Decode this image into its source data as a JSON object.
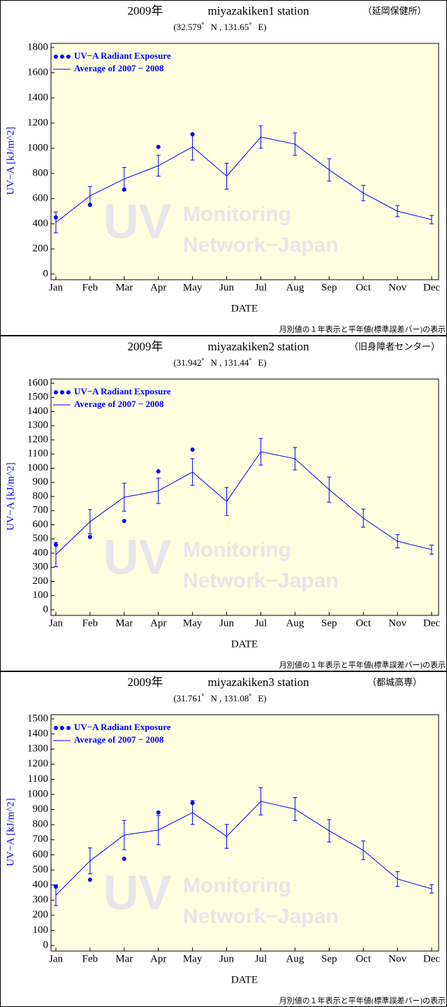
{
  "chart_data": [
    {
      "type": "line",
      "title": "2009年",
      "station": "miyazakiken1 station",
      "note": "（延岡保健所）",
      "subtitle": "(32.579゜N , 131.65゜E)",
      "footer": "月別値の１年表示と平年値(標準誤差バー)の表示",
      "watermark": [
        "UV",
        "Monitoring",
        "Network−Japan"
      ],
      "xlabel": "DATE",
      "ylabel": "UV−A [kJ/m^2]",
      "background": "#ffffe0",
      "categories": [
        "Jan",
        "Feb",
        "Mar",
        "Apr",
        "May",
        "Jun",
        "Jul",
        "Aug",
        "Sep",
        "Oct",
        "Nov",
        "Dec"
      ],
      "ylim": [
        0,
        1800
      ],
      "yticks": [
        0,
        200,
        400,
        600,
        800,
        1000,
        1200,
        1400,
        1600,
        1800
      ],
      "series": [
        {
          "name": "UV−A Radiant Exposure",
          "type": "scatter",
          "color": "#0000ff",
          "values": [
            450,
            550,
            672,
            1011,
            1111,
            null,
            null,
            null,
            null,
            null,
            null,
            null
          ]
        },
        {
          "name": "Average of 2007 − 2008",
          "type": "line",
          "color": "#0000ff",
          "values": [
            411,
            622,
            756,
            861,
            1011,
            778,
            1089,
            1033,
            828,
            644,
            500,
            433
          ],
          "errors": [
            83,
            75,
            92,
            83,
            105,
            103,
            89,
            89,
            89,
            61,
            44,
            33
          ]
        }
      ]
    },
    {
      "type": "line",
      "title": "2009年",
      "station": "miyazakiken2 station",
      "note": "（旧身障者センター）",
      "subtitle": "(31.942゜N , 131.44゜E)",
      "footer": "月別値の１年表示と平年値(標準誤差バー)の表示",
      "watermark": [
        "UV",
        "Monitoring",
        "Network−Japan"
      ],
      "xlabel": "DATE",
      "ylabel": "UV−A [kJ/m^2]",
      "background": "#ffffe0",
      "categories": [
        "Jan",
        "Feb",
        "Mar",
        "Apr",
        "May",
        "Jun",
        "Jul",
        "Aug",
        "Sep",
        "Oct",
        "Nov",
        "Dec"
      ],
      "ylim": [
        0,
        1600
      ],
      "yticks": [
        0,
        100,
        200,
        300,
        400,
        500,
        600,
        700,
        800,
        900,
        1000,
        1100,
        1200,
        1300,
        1400,
        1500,
        1600
      ],
      "series": [
        {
          "name": "UV−A Radiant Exposure",
          "type": "scatter",
          "color": "#0000ff",
          "values": [
            459,
            514,
            627,
            978,
            1131,
            null,
            null,
            null,
            null,
            null,
            null,
            null
          ]
        },
        {
          "name": "Average of 2007 − 2008",
          "type": "line",
          "color": "#0000ff",
          "values": [
            390,
            622,
            795,
            840,
            973,
            765,
            1116,
            1067,
            849,
            647,
            484,
            425
          ],
          "errors": [
            86,
            86,
            99,
            89,
            94,
            99,
            94,
            79,
            89,
            64,
            47,
            32
          ]
        }
      ]
    },
    {
      "type": "line",
      "title": "2009年",
      "station": "miyazakiken3 station",
      "note": "（都城高専）",
      "subtitle": "(31.761゜N , 131.08゜E)",
      "footer": "月別値の１年表示と平年値(標準誤差バー)の表示",
      "watermark": [
        "UV",
        "Monitoring",
        "Network−Japan"
      ],
      "xlabel": "DATE",
      "ylabel": "UV−A [kJ/m^2]",
      "background": "#ffffe0",
      "categories": [
        "Jan",
        "Feb",
        "Mar",
        "Apr",
        "May",
        "Jun",
        "Jul",
        "Aug",
        "Sep",
        "Oct",
        "Nov",
        "Dec"
      ],
      "ylim": [
        0,
        1500
      ],
      "yticks": [
        0,
        100,
        200,
        300,
        400,
        500,
        600,
        700,
        800,
        900,
        1000,
        1100,
        1200,
        1300,
        1400,
        1500
      ],
      "series": [
        {
          "name": "UV−A Radiant Exposure",
          "type": "scatter",
          "color": "#0000ff",
          "values": [
            389,
            435,
            574,
            880,
            944,
            null,
            null,
            null,
            null,
            null,
            null,
            null
          ]
        },
        {
          "name": "Average of 2007 − 2008",
          "type": "line",
          "color": "#0000ff",
          "values": [
            333,
            560,
            731,
            764,
            880,
            722,
            954,
            903,
            759,
            630,
            440,
            375
          ],
          "errors": [
            69,
            86,
            97,
            97,
            79,
            79,
            90,
            76,
            74,
            62,
            49,
            28
          ]
        }
      ]
    }
  ]
}
